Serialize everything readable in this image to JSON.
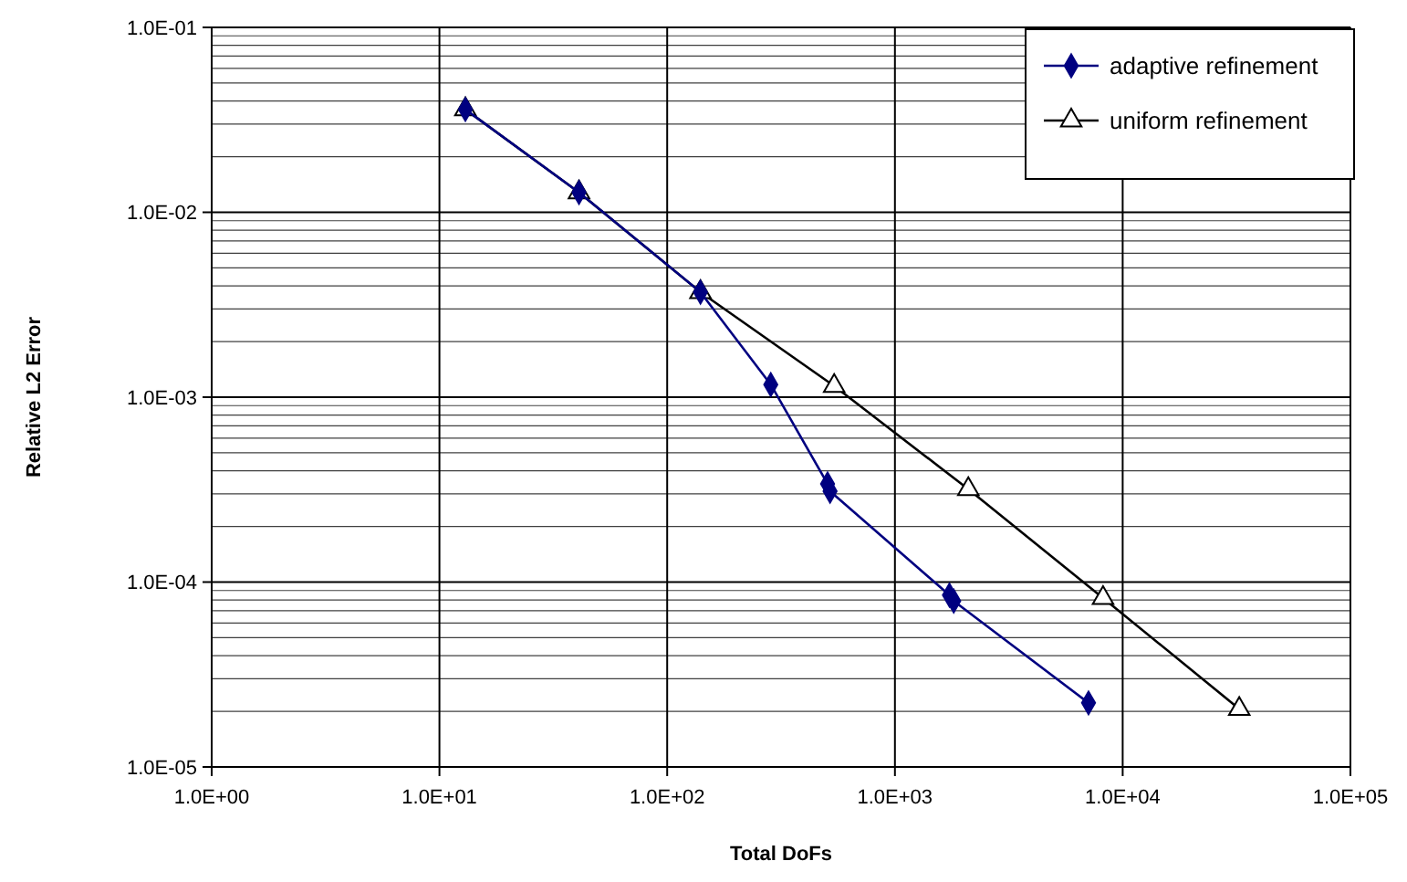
{
  "chart_data": {
    "type": "line",
    "xlabel": "Total DoFs",
    "ylabel": "Relative L2 Error",
    "log": "xy",
    "grid": true,
    "legend": "top right",
    "xlim": [
      1,
      100000
    ],
    "ylim": [
      1e-05,
      0.1
    ],
    "xticks": [
      {
        "value": 1,
        "label": "1.0E+00"
      },
      {
        "value": 10,
        "label": "1.0E+01"
      },
      {
        "value": 100,
        "label": "1.0E+02"
      },
      {
        "value": 1000,
        "label": "1.0E+03"
      },
      {
        "value": 10000,
        "label": "1.0E+04"
      },
      {
        "value": 100000,
        "label": "1.0E+05"
      }
    ],
    "yticks": [
      {
        "value": 1e-05,
        "label": "1.0E-05"
      },
      {
        "value": 0.0001,
        "label": "1.0E-04"
      },
      {
        "value": 0.001,
        "label": "1.0E-03"
      },
      {
        "value": 0.01,
        "label": "1.0E-02"
      },
      {
        "value": 0.1,
        "label": "1.0E-01"
      }
    ],
    "series": [
      {
        "name": "adaptive refinement",
        "color": "#000080",
        "marker": "diamond",
        "x": [
          13,
          41,
          140,
          285,
          506,
          519,
          1735,
          1812,
          7080
        ],
        "values": [
          0.036,
          0.0128,
          0.0037,
          0.00117,
          0.00034,
          0.00031,
          8.5e-05,
          7.9e-05,
          2.22e-05
        ]
      },
      {
        "name": "uniform refinement",
        "color": "#000000",
        "marker": "triangle",
        "x": [
          13,
          41,
          140,
          541,
          2100,
          8200,
          32500
        ],
        "values": [
          0.036,
          0.0128,
          0.0037,
          0.00115,
          0.000318,
          8.2e-05,
          2.06e-05
        ]
      }
    ]
  }
}
